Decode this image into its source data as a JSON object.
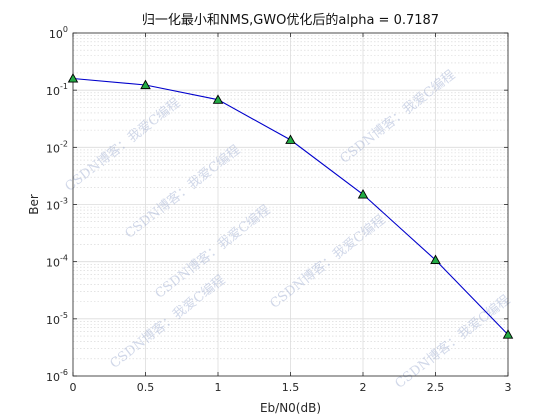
{
  "chart_data": {
    "type": "line",
    "title": "归一化最小和NMS,GWO优化后的alpha = 0.7187",
    "xlabel": "Eb/N0(dB)",
    "ylabel": "Ber",
    "x_scale": "linear",
    "y_scale": "log",
    "xlim": [
      0,
      3
    ],
    "ylim": [
      1e-06,
      1
    ],
    "x_ticks": [
      0,
      0.5,
      1,
      1.5,
      2,
      2.5,
      3
    ],
    "x_tick_labels": [
      "0",
      "0.5",
      "1",
      "1.5",
      "2",
      "2.5",
      "3"
    ],
    "y_tick_exponents": [
      0,
      -1,
      -2,
      -3,
      -4,
      -5,
      -6
    ],
    "y_tick_base": "10",
    "grid": true,
    "minor_grid": true,
    "legend": "none",
    "series": [
      {
        "x": [
          0,
          0.5,
          1,
          1.5,
          2,
          2.5,
          3
        ],
        "y": [
          0.16,
          0.123,
          0.068,
          0.0135,
          0.0015,
          0.000107,
          5.3e-06
        ],
        "color": "#0000cc",
        "marker": "triangle",
        "marker_fill": "#22aa44"
      }
    ]
  },
  "watermark": {
    "text": "CSDN博客：我爱C编程"
  }
}
